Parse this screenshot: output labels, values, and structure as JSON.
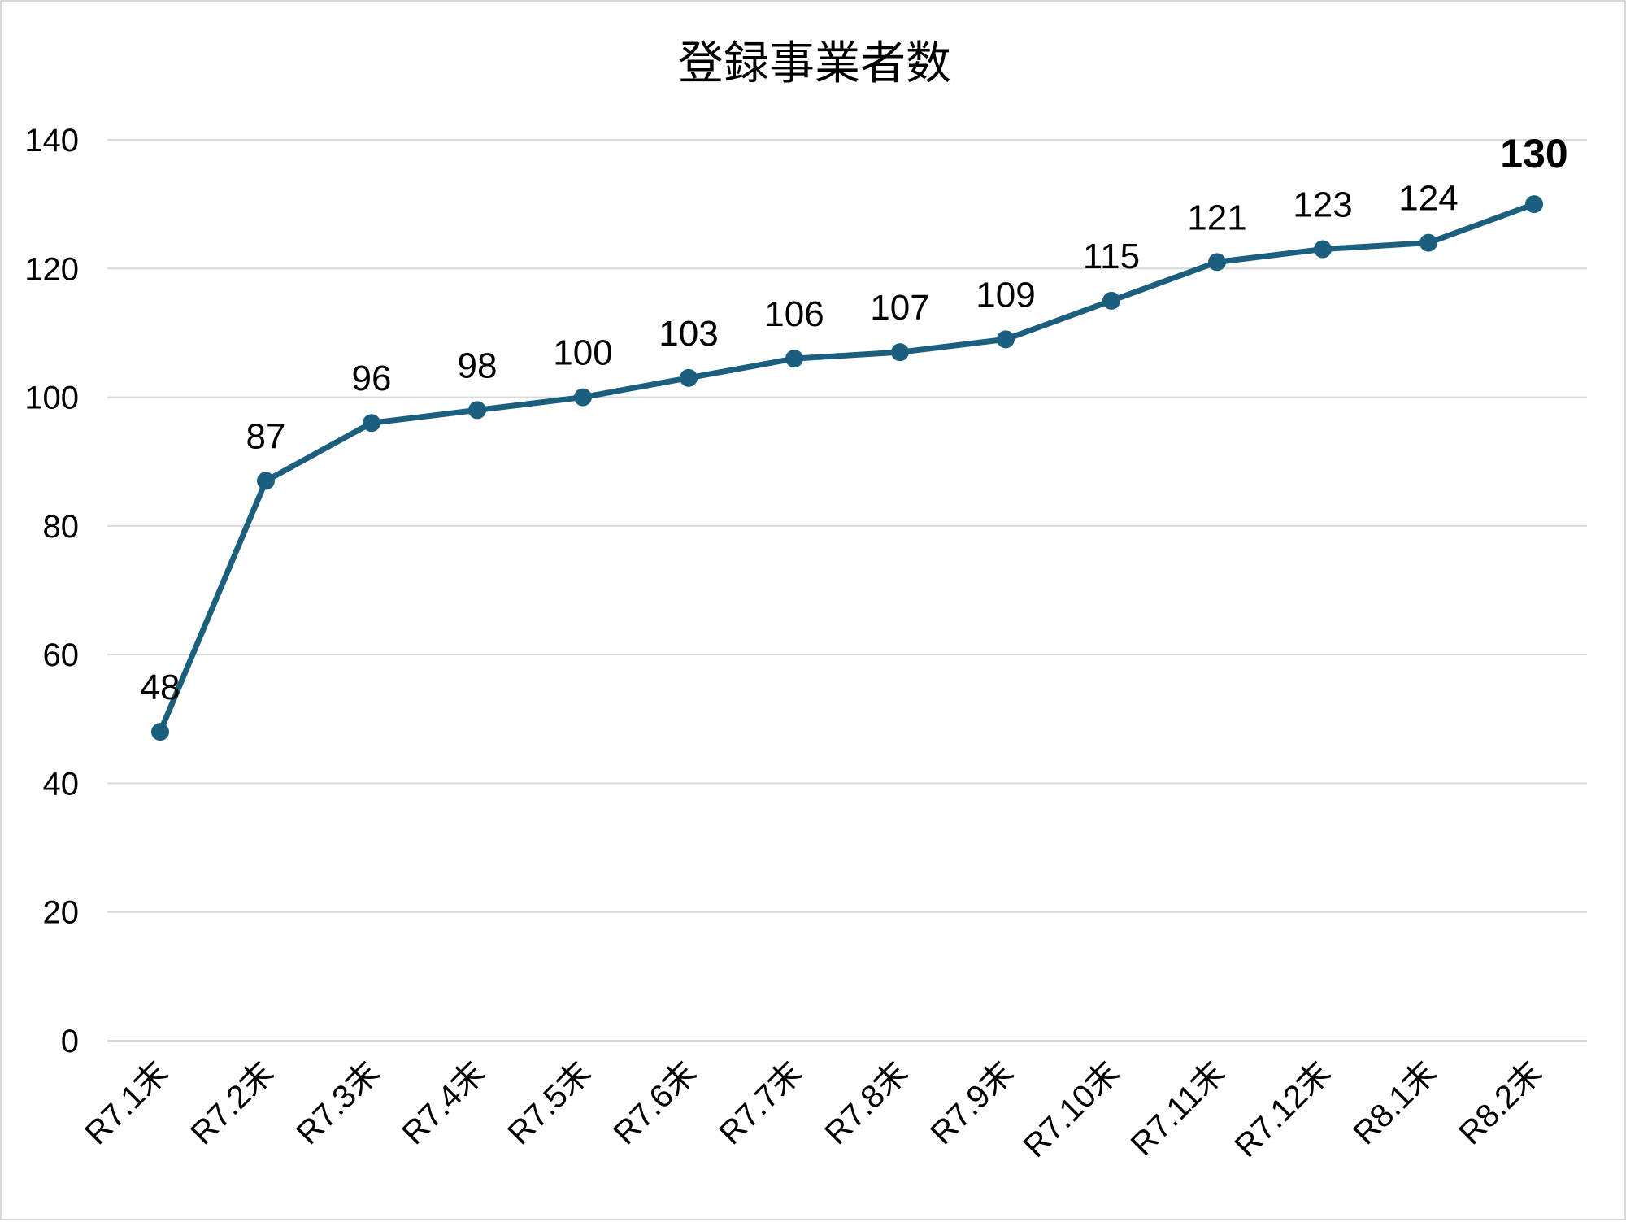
{
  "chart_data": {
    "type": "line",
    "title": "登録事業者数",
    "xlabel": "",
    "ylabel": "",
    "categories": [
      "R7.1末",
      "R7.2末",
      "R7.3末",
      "R7.4末",
      "R7.5末",
      "R7.6末",
      "R7.7末",
      "R7.8末",
      "R7.9末",
      "R7.10末",
      "R7.11末",
      "R7.12末",
      "R8.1末",
      "R8.2末"
    ],
    "series": [
      {
        "values": [
          48,
          87,
          96,
          98,
          100,
          103,
          106,
          107,
          109,
          115,
          121,
          123,
          124,
          130
        ]
      }
    ],
    "data_labels": [
      "48",
      "87",
      "96",
      "98",
      "100",
      "103",
      "106",
      "107",
      "109",
      "115",
      "121",
      "123",
      "124",
      "130"
    ],
    "ylim": [
      0,
      140
    ],
    "yticks": [
      0,
      20,
      40,
      60,
      80,
      100,
      120,
      140
    ],
    "ytick_labels": [
      "0",
      "20",
      "40",
      "60",
      "80",
      "100",
      "120",
      "140"
    ],
    "grid": "horizontal",
    "legend": "none",
    "line_color": "#1b5e7e",
    "grid_color": "#d9d9d9",
    "highlight_last_label": true
  }
}
